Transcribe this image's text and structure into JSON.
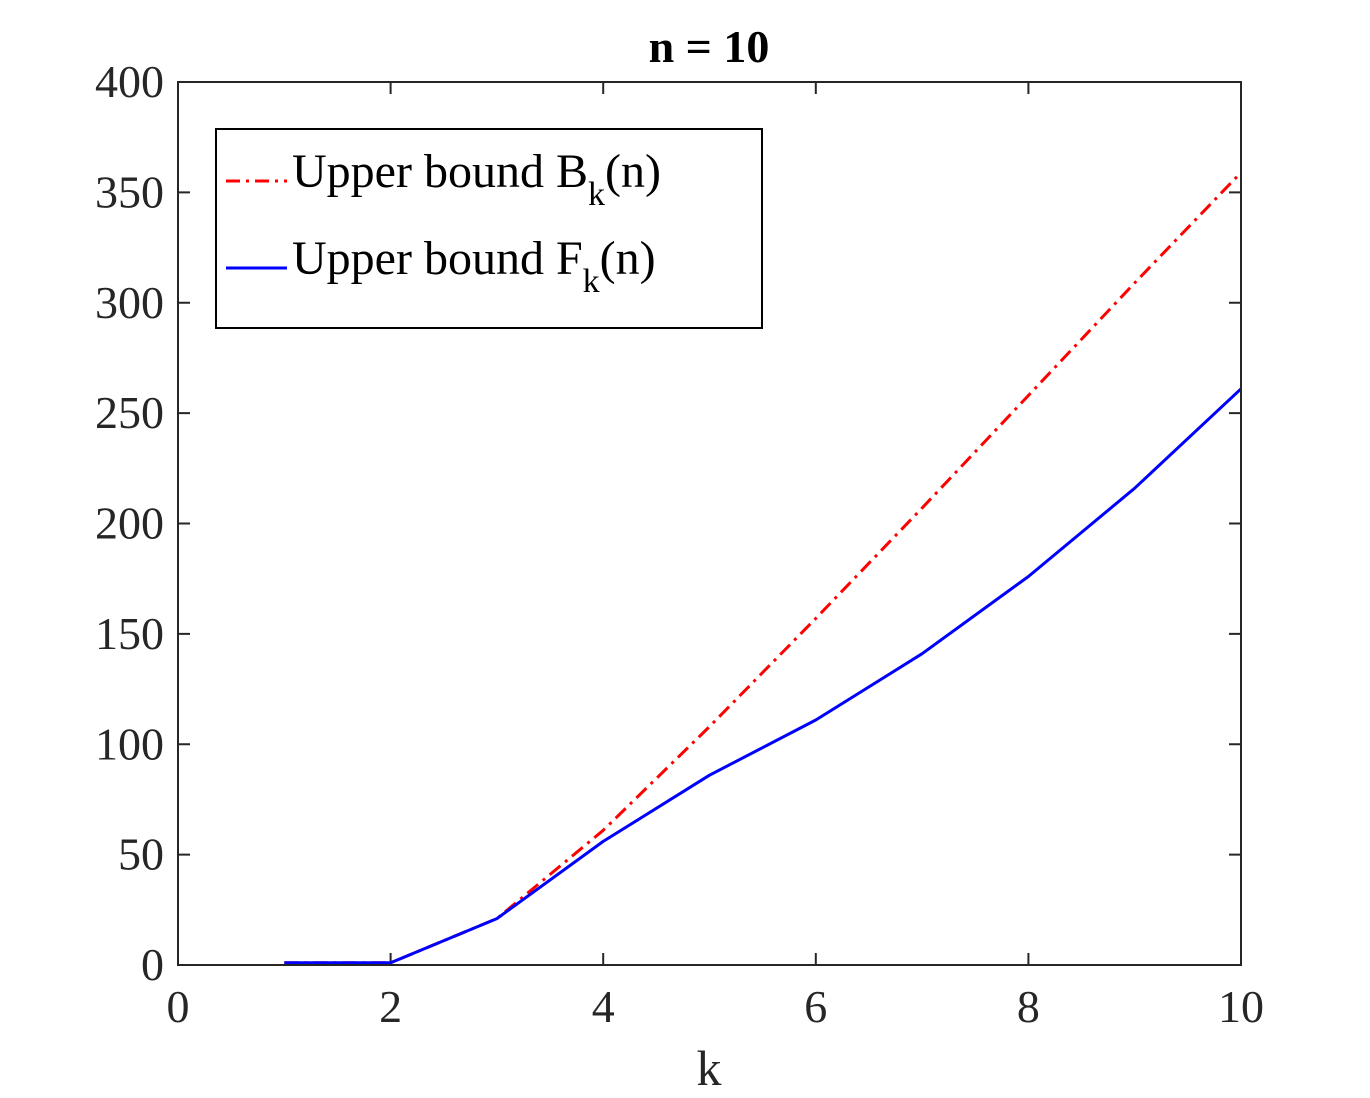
{
  "chart_data": {
    "type": "line",
    "title": "n = 10",
    "xlabel": "k",
    "ylabel": "",
    "xlim": [
      0,
      10
    ],
    "ylim": [
      0,
      400
    ],
    "xticks": [
      0,
      2,
      4,
      6,
      8,
      10
    ],
    "yticks": [
      0,
      50,
      100,
      150,
      200,
      250,
      300,
      350,
      400
    ],
    "x": [
      1,
      2,
      3,
      4,
      5,
      6,
      7,
      8,
      9,
      10
    ],
    "series": [
      {
        "name_main": "Upper bound B",
        "name_sub": "k",
        "name_tail": "(n)",
        "color": "#ff0000",
        "line_style": "dash-dot",
        "values": [
          1,
          1,
          21,
          61,
          108,
          157,
          207,
          258,
          309,
          359
        ]
      },
      {
        "name_main": "Upper bound F",
        "name_sub": "k",
        "name_tail": "(n)",
        "color": "#0000ff",
        "line_style": "solid",
        "values": [
          1,
          1,
          21,
          56,
          86,
          111,
          141,
          176,
          216,
          261
        ]
      }
    ],
    "grid": false,
    "legend_position": "top-left",
    "axis_color": "#262626"
  }
}
